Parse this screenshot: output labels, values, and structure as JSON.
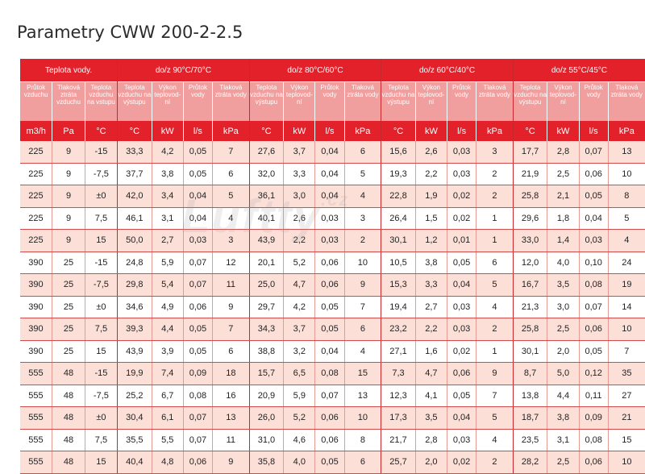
{
  "title": "Parametry  CWW 200-2-2.5",
  "watermark": "Luftty",
  "watermark_suffix": ".cz",
  "colors": {
    "header_red": "#e2212a",
    "subheader_pink": "#f19f9e",
    "row_tint": "#fce0d8"
  },
  "table": {
    "groups": [
      {
        "label": "Teplota vody."
      },
      {
        "label": "do/z 90°C/70°C"
      },
      {
        "label": "do/z 80°C/60°C"
      },
      {
        "label": "do/z 60°C/40°C"
      },
      {
        "label": "do/z 55°C/45°C"
      }
    ],
    "base_columns": [
      "Průtok vzduchu",
      "Tlaková ztráta vzduchu",
      "Teplota vzduchu na vstupu"
    ],
    "group_columns": [
      "Teplota vzduchu na výstupu",
      "Výkon teplovod-ní",
      "Průtok vody",
      "Tlaková ztráta vody"
    ],
    "base_units": [
      "m3/h",
      "Pa",
      "°C"
    ],
    "group_units": [
      "°C",
      "kW",
      "l/s",
      "kPa"
    ],
    "rows": [
      [
        "225",
        "9",
        "-15",
        "33,3",
        "4,2",
        "0,05",
        "7",
        "27,6",
        "3,7",
        "0,04",
        "6",
        "15,6",
        "2,6",
        "0,03",
        "3",
        "17,7",
        "2,8",
        "0,07",
        "13"
      ],
      [
        "225",
        "9",
        "-7,5",
        "37,7",
        "3,8",
        "0,05",
        "6",
        "32,0",
        "3,3",
        "0,04",
        "5",
        "19,3",
        "2,2",
        "0,03",
        "2",
        "21,9",
        "2,5",
        "0,06",
        "10"
      ],
      [
        "225",
        "9",
        "±0",
        "42,0",
        "3,4",
        "0,04",
        "5",
        "36,1",
        "3,0",
        "0,04",
        "4",
        "22,8",
        "1,9",
        "0,02",
        "2",
        "25,8",
        "2,1",
        "0,05",
        "8"
      ],
      [
        "225",
        "9",
        "7,5",
        "46,1",
        "3,1",
        "0,04",
        "4",
        "40,1",
        "2,6",
        "0,03",
        "3",
        "26,4",
        "1,5",
        "0,02",
        "1",
        "29,6",
        "1,8",
        "0,04",
        "5"
      ],
      [
        "225",
        "9",
        "15",
        "50,0",
        "2,7",
        "0,03",
        "3",
        "43,9",
        "2,2",
        "0,03",
        "2",
        "30,1",
        "1,2",
        "0,01",
        "1",
        "33,0",
        "1,4",
        "0,03",
        "4"
      ],
      [
        "390",
        "25",
        "-15",
        "24,8",
        "5,9",
        "0,07",
        "12",
        "20,1",
        "5,2",
        "0,06",
        "10",
        "10,5",
        "3,8",
        "0,05",
        "6",
        "12,0",
        "4,0",
        "0,10",
        "24"
      ],
      [
        "390",
        "25",
        "-7,5",
        "29,8",
        "5,4",
        "0,07",
        "11",
        "25,0",
        "4,7",
        "0,06",
        "9",
        "15,3",
        "3,3",
        "0,04",
        "5",
        "16,7",
        "3,5",
        "0,08",
        "19"
      ],
      [
        "390",
        "25",
        "±0",
        "34,6",
        "4,9",
        "0,06",
        "9",
        "29,7",
        "4,2",
        "0,05",
        "7",
        "19,4",
        "2,7",
        "0,03",
        "4",
        "21,3",
        "3,0",
        "0,07",
        "14"
      ],
      [
        "390",
        "25",
        "7,5",
        "39,3",
        "4,4",
        "0,05",
        "7",
        "34,3",
        "3,7",
        "0,05",
        "6",
        "23,2",
        "2,2",
        "0,03",
        "2",
        "25,8",
        "2,5",
        "0,06",
        "10"
      ],
      [
        "390",
        "25",
        "15",
        "43,9",
        "3,9",
        "0,05",
        "6",
        "38,8",
        "3,2",
        "0,04",
        "4",
        "27,1",
        "1,6",
        "0,02",
        "1",
        "30,1",
        "2,0",
        "0,05",
        "7"
      ],
      [
        "555",
        "48",
        "-15",
        "19,9",
        "7,4",
        "0,09",
        "18",
        "15,7",
        "6,5",
        "0,08",
        "15",
        "7,3",
        "4,7",
        "0,06",
        "9",
        "8,7",
        "5,0",
        "0,12",
        "35"
      ],
      [
        "555",
        "48",
        "-7,5",
        "25,2",
        "6,7",
        "0,08",
        "16",
        "20,9",
        "5,9",
        "0,07",
        "13",
        "12,3",
        "4,1",
        "0,05",
        "7",
        "13,8",
        "4,4",
        "0,11",
        "27"
      ],
      [
        "555",
        "48",
        "±0",
        "30,4",
        "6,1",
        "0,07",
        "13",
        "26,0",
        "5,2",
        "0,06",
        "10",
        "17,3",
        "3,5",
        "0,04",
        "5",
        "18,7",
        "3,8",
        "0,09",
        "21"
      ],
      [
        "555",
        "48",
        "7,5",
        "35,5",
        "5,5",
        "0,07",
        "11",
        "31,0",
        "4,6",
        "0,06",
        "8",
        "21,7",
        "2,8",
        "0,03",
        "4",
        "23,5",
        "3,1",
        "0,08",
        "15"
      ],
      [
        "555",
        "48",
        "15",
        "40,4",
        "4,8",
        "0,06",
        "9",
        "35,8",
        "4,0",
        "0,05",
        "6",
        "25,7",
        "2,0",
        "0,02",
        "2",
        "28,2",
        "2,5",
        "0,06",
        "10"
      ]
    ]
  }
}
